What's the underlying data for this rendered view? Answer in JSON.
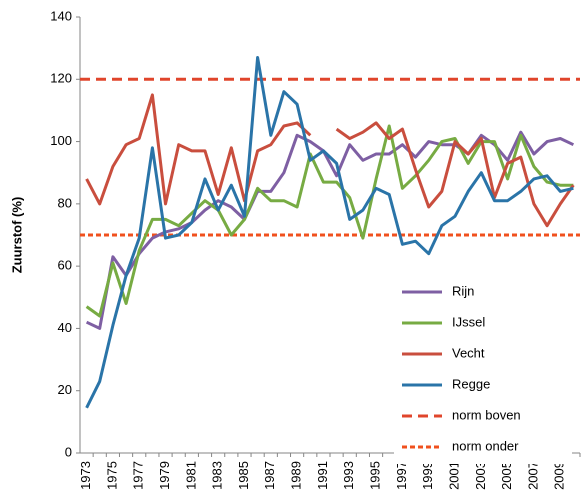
{
  "chart_data": {
    "type": "line",
    "y_label": "Zuurstof (%)",
    "categories": [
      "1973",
      null,
      "1975",
      null,
      "1977",
      null,
      "1979",
      null,
      "1981",
      null,
      "1983",
      null,
      "1985",
      null,
      "1987",
      null,
      "1989",
      null,
      "1991",
      null,
      "1993",
      null,
      "1995",
      null,
      "1997",
      null,
      "1999",
      null,
      "2001",
      null,
      "2003",
      null,
      "2005",
      null,
      "2007",
      null,
      "2009",
      null
    ],
    "series": [
      {
        "name": "Rijn",
        "color": "#7e5fa3",
        "values": [
          42,
          40,
          63,
          57,
          64,
          69,
          71,
          72,
          74,
          78,
          81,
          79,
          75,
          84,
          84,
          90,
          102,
          100,
          97,
          89,
          99,
          94,
          96,
          96,
          99,
          95,
          100,
          99,
          99,
          96,
          102,
          99,
          94,
          103,
          96,
          100,
          101,
          99
        ]
      },
      {
        "name": "IJssel",
        "color": "#77ab43",
        "values": [
          47,
          44,
          61,
          48,
          65,
          75,
          75,
          73,
          77,
          81,
          78,
          70,
          75,
          85,
          81,
          81,
          79,
          96,
          87,
          87,
          82,
          69,
          88,
          105,
          85,
          89,
          94,
          100,
          101,
          93,
          100,
          100,
          88,
          102,
          92,
          87,
          86,
          86
        ]
      },
      {
        "name": "Vecht",
        "color": "#c94e3e",
        "values": [
          88,
          80,
          92,
          99,
          101,
          115,
          80,
          99,
          97,
          97,
          83,
          98,
          81,
          97,
          99,
          105,
          106,
          102,
          null,
          104,
          101,
          103,
          106,
          101,
          104,
          91,
          79,
          84,
          100,
          96,
          101,
          82,
          93,
          95,
          80,
          73,
          80,
          86
        ]
      },
      {
        "name": "Regge",
        "color": "#2a74a8",
        "values": [
          14.5,
          23,
          41,
          57,
          69,
          98,
          69,
          70,
          74,
          88,
          78,
          86,
          76,
          127,
          102,
          116,
          112,
          94,
          97,
          93,
          75,
          78,
          85,
          83,
          67,
          68,
          64,
          73,
          76,
          84,
          90,
          81,
          81,
          84,
          88,
          89,
          84,
          85
        ]
      }
    ],
    "hlines": [
      {
        "name": "norm boven",
        "color": "#e0452b",
        "value": 120,
        "dash": "10 6"
      },
      {
        "name": "norm onder",
        "color": "#f0501e",
        "value": 70,
        "dash": "5 3"
      }
    ],
    "ylim": [
      0,
      140
    ],
    "yticks": [
      0,
      20,
      40,
      60,
      80,
      100,
      120,
      140
    ],
    "grid": false,
    "legend": "lower right"
  }
}
